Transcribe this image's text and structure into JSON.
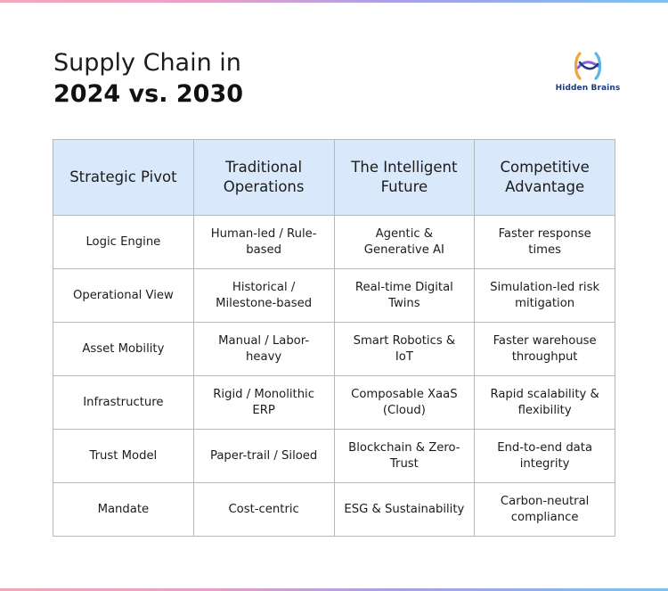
{
  "title": {
    "line1": "Supply Chain in",
    "line2": "2024 vs. 2030"
  },
  "brand": {
    "name": "Hidden Brains",
    "colors": [
      "#1f3b7a",
      "#f0a43a",
      "#5bb6e8",
      "#8a5fd6"
    ]
  },
  "table": {
    "headers": [
      "Strategic Pivot",
      "Traditional Operations",
      "The Intelligent Future",
      "Competitive Advantage"
    ],
    "rows": [
      [
        "Logic Engine",
        "Human-led / Rule-based",
        "Agentic & Generative AI",
        "Faster response times"
      ],
      [
        "Operational View",
        "Historical / Milestone-based",
        "Real-time Digital Twins",
        "Simulation-led risk mitigation"
      ],
      [
        "Asset Mobility",
        "Manual / Labor-heavy",
        "Smart Robotics & IoT",
        "Faster warehouse throughput"
      ],
      [
        "Infrastructure",
        "Rigid / Monolithic ERP",
        "Composable XaaS (Cloud)",
        "Rapid scalability & flexibility"
      ],
      [
        "Trust Model",
        "Paper-trail / Siloed",
        "Blockchain & Zero-Trust",
        "End-to-end data integrity"
      ],
      [
        "Mandate",
        "Cost-centric",
        "ESG & Sustainability",
        "Carbon-neutral compliance"
      ]
    ]
  }
}
